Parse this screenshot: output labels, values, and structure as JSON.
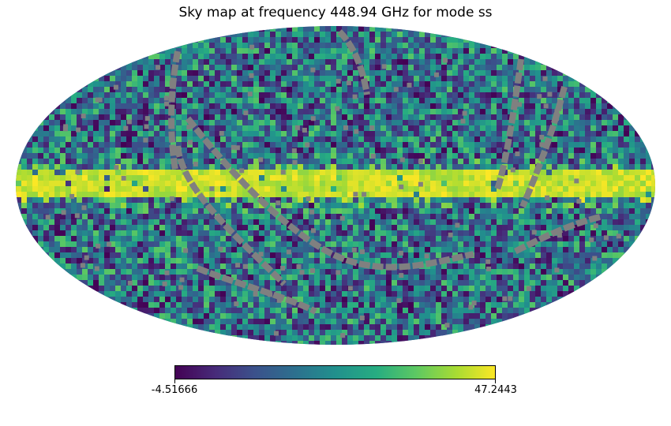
{
  "chart_data": {
    "type": "heatmap",
    "projection": "mollweide",
    "title": "Sky map at frequency 448.94 GHz for mode ss",
    "colormap": "viridis",
    "bad_value_color": "#808080",
    "colorbar": {
      "orientation": "horizontal",
      "min": -4.51666,
      "max": 47.2443,
      "min_label": "-4.51666",
      "max_label": "47.2443"
    },
    "features": [
      {
        "description": "bright galactic plane band along the equator",
        "value_range": [
          35,
          47.2443
        ]
      },
      {
        "description": "noisy high-latitude background",
        "value_range": [
          -4.51666,
          30
        ]
      },
      {
        "description": "masked (unobserved) scan stripes",
        "value": null
      }
    ]
  }
}
